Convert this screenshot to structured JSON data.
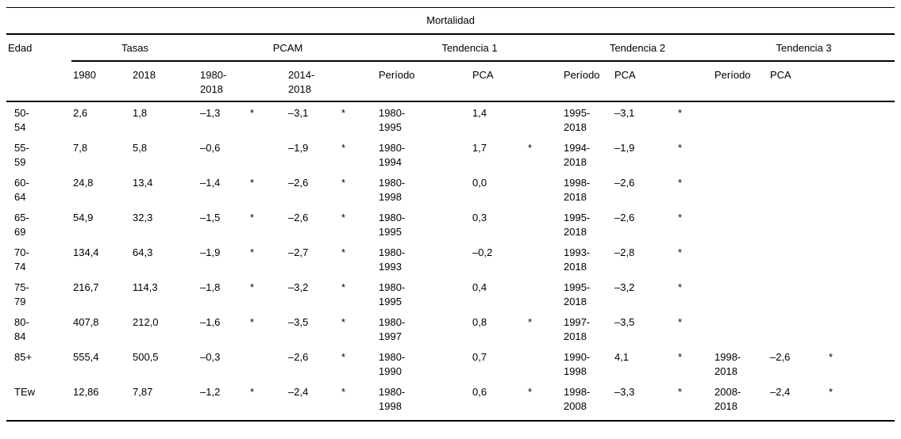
{
  "title": "Mortalidad",
  "header": {
    "edad": "Edad",
    "groups": [
      "Tasas",
      "PCAM",
      "Tendencia 1",
      "Tendencia 2",
      "Tendencia 3"
    ],
    "subs": [
      "1980",
      "2018",
      "1980-\n2018",
      "",
      "2014-\n2018",
      "",
      "Período",
      "PCA",
      "",
      "Período",
      "PCA",
      "",
      "Período",
      "PCA",
      ""
    ]
  },
  "rows": [
    [
      "50-\n54",
      "2,6",
      "1,8",
      "–1,3",
      "*",
      "–3,1",
      "*",
      "1980-\n1995",
      "1,4",
      "",
      "1995-\n2018",
      "–3,1",
      "*",
      "",
      "",
      ""
    ],
    [
      "55-\n59",
      "7,8",
      "5,8",
      "–0,6",
      "",
      "–1,9",
      "*",
      "1980-\n1994",
      "1,7",
      "*",
      "1994-\n2018",
      "–1,9",
      "*",
      "",
      "",
      ""
    ],
    [
      "60-\n64",
      "24,8",
      "13,4",
      "–1,4",
      "*",
      "–2,6",
      "*",
      "1980-\n1998",
      "0,0",
      "",
      "1998-\n2018",
      "–2,6",
      "*",
      "",
      "",
      ""
    ],
    [
      "65-\n69",
      "54,9",
      "32,3",
      "–1,5",
      "*",
      "–2,6",
      "*",
      "1980-\n1995",
      "0,3",
      "",
      "1995-\n2018",
      "–2,6",
      "*",
      "",
      "",
      ""
    ],
    [
      "70-\n74",
      "134,4",
      "64,3",
      "–1,9",
      "*",
      "–2,7",
      "*",
      "1980-\n1993",
      "–0,2",
      "",
      "1993-\n2018",
      "–2,8",
      "*",
      "",
      "",
      ""
    ],
    [
      "75-\n79",
      "216,7",
      "114,3",
      "–1,8",
      "*",
      "–3,2",
      "*",
      "1980-\n1995",
      "0,4",
      "",
      "1995-\n2018",
      "–3,2",
      "*",
      "",
      "",
      ""
    ],
    [
      "80-\n84",
      "407,8",
      "212,0",
      "–1,6",
      "*",
      "–3,5",
      "*",
      "1980-\n1997",
      "0,8",
      "*",
      "1997-\n2018",
      "–3,5",
      "*",
      "",
      "",
      ""
    ],
    [
      "85+",
      "555,4",
      "500,5",
      "–0,3",
      "",
      "–2,6",
      "*",
      "1980-\n1990",
      "0,7",
      "",
      "1990-\n1998",
      "4,1",
      "*",
      "1998-\n2018",
      "–2,6",
      "*"
    ],
    [
      "TEw",
      "12,86",
      "7,87",
      "–1,2",
      "*",
      "–2,4",
      "*",
      "1980-\n1998",
      "0,6",
      "*",
      "1998-\n2008",
      "–3,3",
      "*",
      "2008-\n2018",
      "–2,4",
      "*"
    ]
  ],
  "colors": {
    "text": "#000000",
    "background": "#ffffff",
    "rule": "#000000"
  }
}
